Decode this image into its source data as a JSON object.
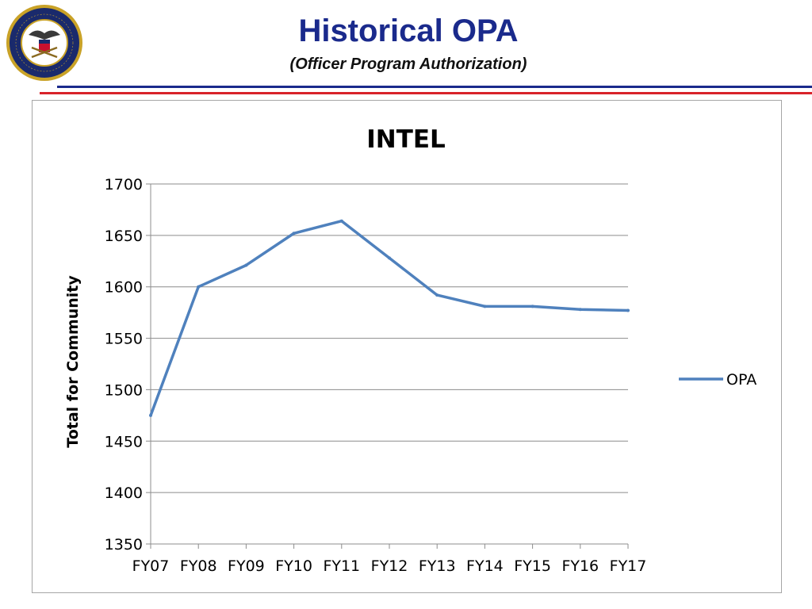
{
  "header": {
    "title": "Historical OPA",
    "subtitle": "(Officer Program Authorization)",
    "logo_text": "UNITED STATES NAVY · CHIEF OF NAVAL OPERATIONS"
  },
  "colors": {
    "title": "#1a2a8c",
    "rule_blue": "#1a2a8c",
    "rule_red": "#d8232a",
    "series": "#4f81bd"
  },
  "chart_data": {
    "type": "line",
    "title": "INTEL",
    "xlabel": "",
    "ylabel": "Total for Community",
    "categories": [
      "FY07",
      "FY08",
      "FY09",
      "FY10",
      "FY11",
      "FY12",
      "FY13",
      "FY14",
      "FY15",
      "FY16",
      "FY17"
    ],
    "series": [
      {
        "name": "OPA",
        "values": [
          1475,
          1600,
          1621,
          1652,
          1664,
          1628,
          1592,
          1581,
          1581,
          1578,
          1577
        ]
      }
    ],
    "ylim": [
      1350,
      1700
    ],
    "yticks": [
      "1350",
      "1400",
      "1450",
      "1500",
      "1550",
      "1600",
      "1650",
      "1700"
    ],
    "grid": true,
    "legend": "right"
  }
}
